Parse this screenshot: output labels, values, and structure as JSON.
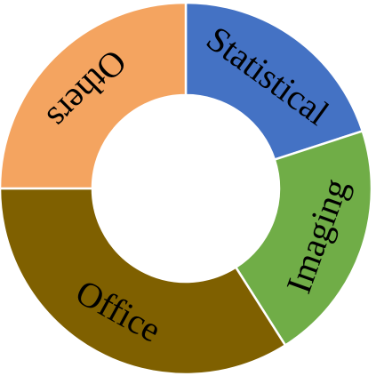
{
  "chart_data": {
    "type": "pie",
    "variant": "doughnut",
    "title": "",
    "legend": "none",
    "categories": [
      "Statistical",
      "Imaging",
      "Office",
      "Others"
    ],
    "values": [
      20,
      21,
      34,
      25
    ],
    "colors": [
      "#4472C4",
      "#70AD47",
      "#7F6000",
      "#F4A460"
    ],
    "label_color": "#000000"
  }
}
